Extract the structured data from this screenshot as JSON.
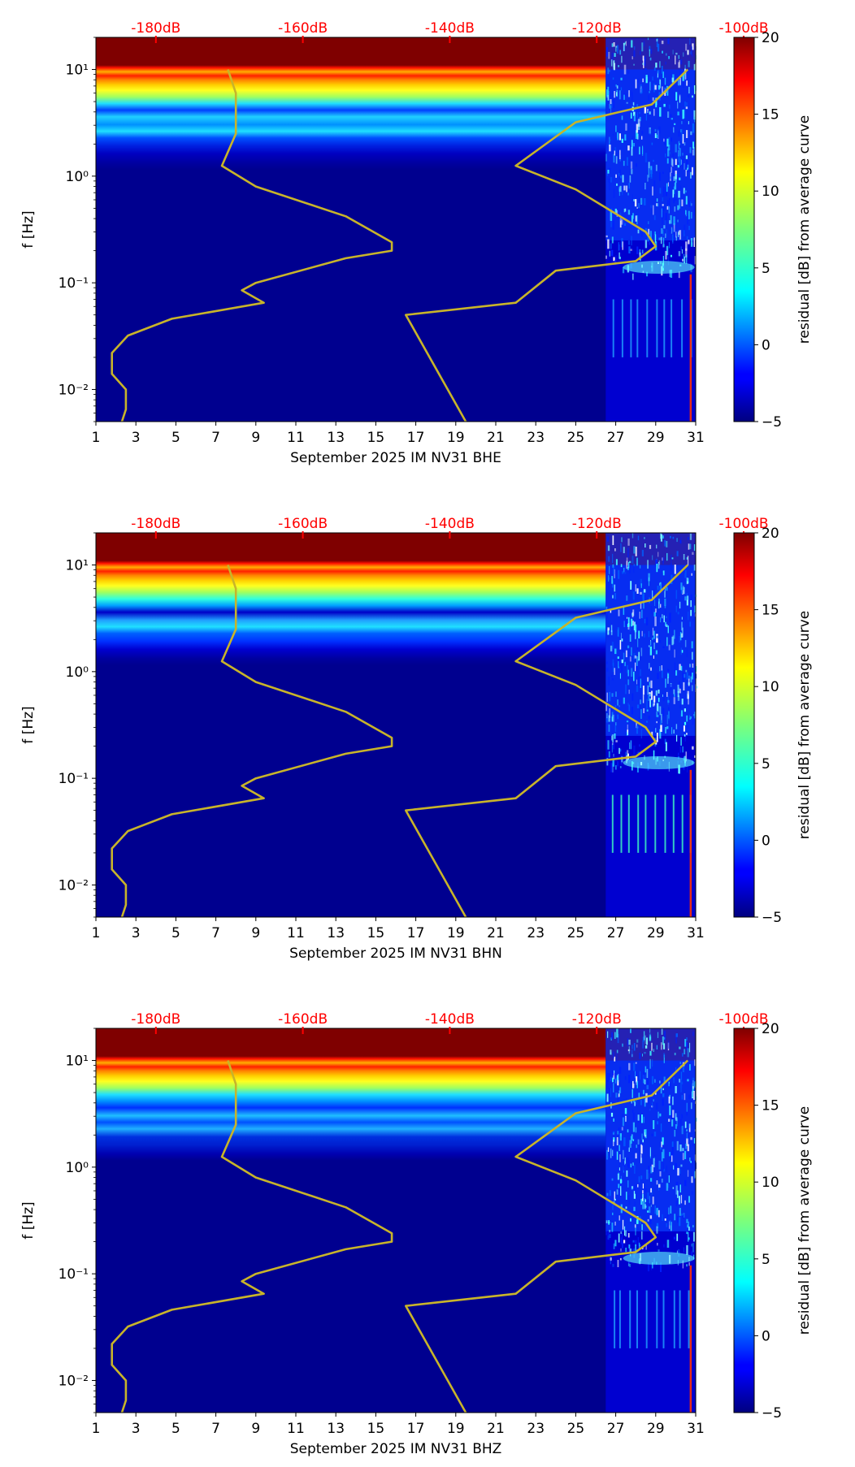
{
  "chart_data": [
    {
      "type": "heatmap",
      "channel": "BHE",
      "xlabel": "September 2025 IM NV31  BHE",
      "ylabel": "f [Hz]",
      "xlim": [
        1,
        31
      ],
      "ylim_hz": [
        0.005,
        20
      ],
      "yscale": "log",
      "x_ticks": [
        "1",
        "3",
        "5",
        "7",
        "9",
        "11",
        "13",
        "15",
        "17",
        "19",
        "21",
        "23",
        "25",
        "27",
        "29",
        "31"
      ],
      "y_ticks": [
        {
          "value": 0.01,
          "label": "10⁻²"
        },
        {
          "value": 0.1,
          "label": "10⁻¹"
        },
        {
          "value": 1,
          "label": "10⁰"
        },
        {
          "value": 10,
          "label": "10¹"
        }
      ],
      "top_axis": {
        "label_color": "#ff0000",
        "ticks": [
          {
            "db": -180,
            "label": "-180dB"
          },
          {
            "db": -160,
            "label": "-160dB"
          },
          {
            "db": -140,
            "label": "-140dB"
          },
          {
            "db": -120,
            "label": "-120dB"
          },
          {
            "db": -100,
            "label": "-100dB"
          }
        ]
      },
      "colorbar": {
        "label": "residual [dB] from average curve",
        "min": -5,
        "max": 20,
        "ticks": [
          "20",
          "15",
          "10",
          "5",
          "0",
          "−5"
        ]
      },
      "data_start_day": 26.5,
      "curves": [
        {
          "name": "low-noise model",
          "color": "#c8b42a",
          "points": [
            [
              7.6,
              10
            ],
            [
              8,
              6
            ],
            [
              8,
              2.5
            ],
            [
              7.3,
              1.25
            ],
            [
              9,
              0.8
            ],
            [
              13.5,
              0.42
            ],
            [
              15.8,
              0.24
            ],
            [
              15.8,
              0.2
            ],
            [
              13.5,
              0.17
            ],
            [
              9,
              0.1
            ],
            [
              8.3,
              0.085
            ],
            [
              9.4,
              0.065
            ],
            [
              4.8,
              0.046
            ],
            [
              2.6,
              0.032
            ],
            [
              1.8,
              0.022
            ],
            [
              1.8,
              0.014
            ],
            [
              2.5,
              0.01
            ],
            [
              2.5,
              0.0065
            ],
            [
              2.3,
              0.005
            ]
          ]
        },
        {
          "name": "high-noise model",
          "color": "#c8b42a",
          "points": [
            [
              30.6,
              10
            ],
            [
              28.8,
              4.7
            ],
            [
              25,
              3.2
            ],
            [
              22,
              1.25
            ],
            [
              25,
              0.75
            ],
            [
              28.5,
              0.3
            ],
            [
              29,
              0.22
            ],
            [
              28,
              0.16
            ],
            [
              24,
              0.13
            ],
            [
              22,
              0.065
            ],
            [
              16.5,
              0.05
            ],
            [
              19.5,
              0.005
            ]
          ]
        }
      ]
    },
    {
      "type": "heatmap",
      "channel": "BHN",
      "xlabel": "September 2025 IM NV31  BHN",
      "ylabel": "f [Hz]",
      "xlim": [
        1,
        31
      ],
      "ylim_hz": [
        0.005,
        20
      ],
      "yscale": "log",
      "x_ticks": [
        "1",
        "3",
        "5",
        "7",
        "9",
        "11",
        "13",
        "15",
        "17",
        "19",
        "21",
        "23",
        "25",
        "27",
        "29",
        "31"
      ],
      "y_ticks": [
        {
          "value": 0.01,
          "label": "10⁻²"
        },
        {
          "value": 0.1,
          "label": "10⁻¹"
        },
        {
          "value": 1,
          "label": "10⁰"
        },
        {
          "value": 10,
          "label": "10¹"
        }
      ],
      "top_axis": {
        "label_color": "#ff0000",
        "ticks": [
          {
            "db": -180,
            "label": "-180dB"
          },
          {
            "db": -160,
            "label": "-160dB"
          },
          {
            "db": -140,
            "label": "-140dB"
          },
          {
            "db": -120,
            "label": "-120dB"
          },
          {
            "db": -100,
            "label": "-100dB"
          }
        ]
      },
      "colorbar": {
        "label": "residual [dB] from average curve",
        "min": -5,
        "max": 20,
        "ticks": [
          "20",
          "15",
          "10",
          "5",
          "0",
          "−5"
        ]
      },
      "data_start_day": 26.5,
      "curves": [
        {
          "name": "low-noise model",
          "color": "#c8b42a",
          "points": [
            [
              7.6,
              10
            ],
            [
              8,
              6
            ],
            [
              8,
              2.5
            ],
            [
              7.3,
              1.25
            ],
            [
              9,
              0.8
            ],
            [
              13.5,
              0.42
            ],
            [
              15.8,
              0.24
            ],
            [
              15.8,
              0.2
            ],
            [
              13.5,
              0.17
            ],
            [
              9,
              0.1
            ],
            [
              8.3,
              0.085
            ],
            [
              9.4,
              0.065
            ],
            [
              4.8,
              0.046
            ],
            [
              2.6,
              0.032
            ],
            [
              1.8,
              0.022
            ],
            [
              1.8,
              0.014
            ],
            [
              2.5,
              0.01
            ],
            [
              2.5,
              0.0065
            ],
            [
              2.3,
              0.005
            ]
          ]
        },
        {
          "name": "high-noise model",
          "color": "#c8b42a",
          "points": [
            [
              30.6,
              10
            ],
            [
              28.8,
              4.7
            ],
            [
              25,
              3.2
            ],
            [
              22,
              1.25
            ],
            [
              25,
              0.75
            ],
            [
              28.5,
              0.3
            ],
            [
              29,
              0.22
            ],
            [
              28,
              0.16
            ],
            [
              24,
              0.13
            ],
            [
              22,
              0.065
            ],
            [
              16.5,
              0.05
            ],
            [
              19.5,
              0.005
            ]
          ]
        }
      ]
    },
    {
      "type": "heatmap",
      "channel": "BHZ",
      "xlabel": "September 2025 IM NV31  BHZ",
      "ylabel": "f [Hz]",
      "xlim": [
        1,
        31
      ],
      "ylim_hz": [
        0.005,
        20
      ],
      "yscale": "log",
      "x_ticks": [
        "1",
        "3",
        "5",
        "7",
        "9",
        "11",
        "13",
        "15",
        "17",
        "19",
        "21",
        "23",
        "25",
        "27",
        "29",
        "31"
      ],
      "y_ticks": [
        {
          "value": 0.01,
          "label": "10⁻²"
        },
        {
          "value": 0.1,
          "label": "10⁻¹"
        },
        {
          "value": 1,
          "label": "10⁰"
        },
        {
          "value": 10,
          "label": "10¹"
        }
      ],
      "top_axis": {
        "label_color": "#ff0000",
        "ticks": [
          {
            "db": -180,
            "label": "-180dB"
          },
          {
            "db": -160,
            "label": "-160dB"
          },
          {
            "db": -140,
            "label": "-140dB"
          },
          {
            "db": -120,
            "label": "-120dB"
          },
          {
            "db": -100,
            "label": "-100dB"
          }
        ]
      },
      "colorbar": {
        "label": "residual [dB] from average curve",
        "min": -5,
        "max": 20,
        "ticks": [
          "20",
          "15",
          "10",
          "5",
          "0",
          "−5"
        ]
      },
      "data_start_day": 26.5,
      "curves": [
        {
          "name": "low-noise model",
          "color": "#c8b42a",
          "points": [
            [
              7.6,
              10
            ],
            [
              8,
              6
            ],
            [
              8,
              2.5
            ],
            [
              7.3,
              1.25
            ],
            [
              9,
              0.8
            ],
            [
              13.5,
              0.42
            ],
            [
              15.8,
              0.24
            ],
            [
              15.8,
              0.2
            ],
            [
              13.5,
              0.17
            ],
            [
              9,
              0.1
            ],
            [
              8.3,
              0.085
            ],
            [
              9.4,
              0.065
            ],
            [
              4.8,
              0.046
            ],
            [
              2.6,
              0.032
            ],
            [
              1.8,
              0.022
            ],
            [
              1.8,
              0.014
            ],
            [
              2.5,
              0.01
            ],
            [
              2.5,
              0.0065
            ],
            [
              2.3,
              0.005
            ]
          ]
        },
        {
          "name": "high-noise model",
          "color": "#c8b42a",
          "points": [
            [
              30.6,
              10
            ],
            [
              28.8,
              4.7
            ],
            [
              25,
              3.2
            ],
            [
              22,
              1.25
            ],
            [
              25,
              0.75
            ],
            [
              28.5,
              0.3
            ],
            [
              29,
              0.22
            ],
            [
              28,
              0.16
            ],
            [
              24,
              0.13
            ],
            [
              22,
              0.065
            ],
            [
              16.5,
              0.05
            ],
            [
              19.5,
              0.005
            ]
          ]
        }
      ]
    }
  ]
}
